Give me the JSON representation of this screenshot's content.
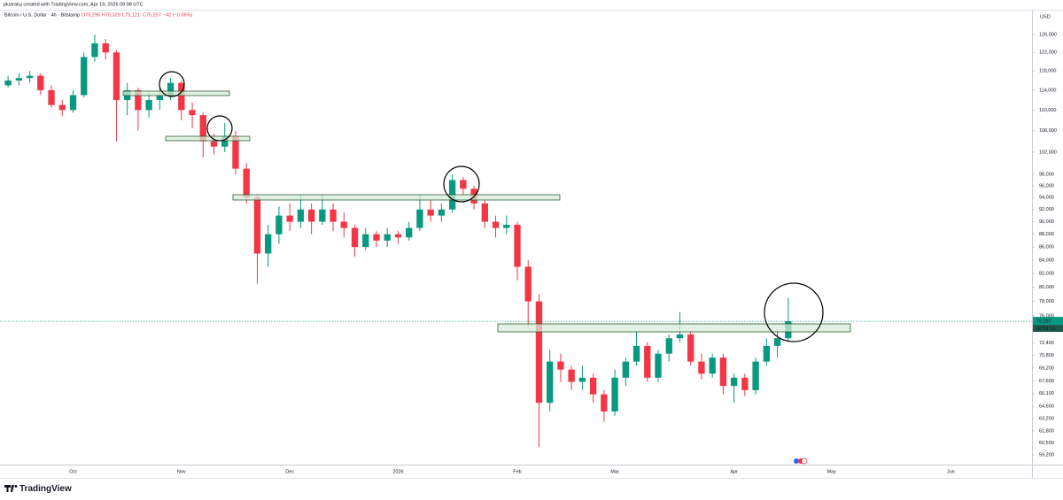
{
  "header": {
    "credit": "pkstratuj created with TradingView.com, Apr 19, 2026 09:08 UTC",
    "logo": "TradingView"
  },
  "chart_data": {
    "type": "candlestick",
    "legend": {
      "symbol": "Bitcoin / U.S. Dollar · 4h · Bitstamp",
      "ohlc": [
        "O75,296",
        "H75,329",
        "L75,121",
        "C75,257"
      ],
      "change": "−42 (−0.06%)"
    },
    "currency": "USD",
    "price_label": {
      "value": 75257,
      "label": "75,257"
    },
    "countdown": "02:51:18",
    "log_scale": true,
    "grid": false,
    "up_color": "#089981",
    "down_color": "#f23645",
    "ylim": [
      58170,
      131520
    ],
    "yticks": [
      {
        "value": 126000,
        "label": "126,000"
      },
      {
        "value": 122000,
        "label": "122,000"
      },
      {
        "value": 118000,
        "label": "118,000"
      },
      {
        "value": 114000,
        "label": "114,000"
      },
      {
        "value": 110000,
        "label": "110,000"
      },
      {
        "value": 106000,
        "label": "106,000"
      },
      {
        "value": 102000,
        "label": "102,000"
      },
      {
        "value": 98000,
        "label": "98,000"
      },
      {
        "value": 96000,
        "label": "96,000"
      },
      {
        "value": 94000,
        "label": "94,000"
      },
      {
        "value": 92000,
        "label": "92,000"
      },
      {
        "value": 90000,
        "label": "90,000"
      },
      {
        "value": 88000,
        "label": "88,000"
      },
      {
        "value": 86000,
        "label": "86,000"
      },
      {
        "value": 84000,
        "label": "84,000"
      },
      {
        "value": 82000,
        "label": "82,000"
      },
      {
        "value": 80000,
        "label": "80,000"
      },
      {
        "value": 78000,
        "label": "78,000"
      },
      {
        "value": 76000,
        "label": "76,000"
      },
      {
        "value": 72400,
        "label": "72,400"
      },
      {
        "value": 70800,
        "label": "70,800"
      },
      {
        "value": 69200,
        "label": "69,200"
      },
      {
        "value": 67600,
        "label": "67,600"
      },
      {
        "value": 66100,
        "label": "66,100"
      },
      {
        "value": 64600,
        "label": "64,600"
      },
      {
        "value": 63200,
        "label": "63,200"
      },
      {
        "value": 61800,
        "label": "61,800"
      },
      {
        "value": 60500,
        "label": "60,500"
      },
      {
        "value": 59200,
        "label": "59,200"
      }
    ],
    "categories": [
      null,
      null,
      null,
      null,
      null,
      null,
      "Oct",
      null,
      null,
      null,
      null,
      null,
      null,
      null,
      null,
      null,
      "Nov",
      null,
      null,
      null,
      null,
      null,
      null,
      null,
      null,
      null,
      "Dec",
      null,
      null,
      null,
      null,
      null,
      null,
      null,
      null,
      null,
      "2026",
      null,
      null,
      null,
      null,
      null,
      null,
      null,
      null,
      null,
      null,
      "Feb",
      null,
      null,
      null,
      null,
      null,
      null,
      null,
      null,
      "Mar",
      null,
      null,
      null,
      null,
      null,
      null,
      null,
      null,
      null,
      null,
      "Apr",
      null,
      null,
      null,
      null,
      null,
      null,
      null,
      null,
      "May",
      null,
      null,
      null,
      null,
      null,
      null,
      null,
      null,
      null,
      null,
      "Jun",
      null,
      null,
      null,
      null,
      null,
      null,
      null
    ],
    "open": [
      115000,
      116000,
      116500,
      117000,
      114000,
      111000,
      110000,
      113000,
      121000,
      124000,
      122000,
      112000,
      114000,
      110000,
      112000,
      113000,
      115500,
      110000,
      109000,
      104000,
      103000,
      105000,
      99000,
      94000,
      85000,
      88000,
      91000,
      90000,
      92000,
      90000,
      92000,
      90000,
      89000,
      86000,
      88000,
      87000,
      88000,
      87500,
      89000,
      92000,
      91000,
      92000,
      97000,
      95500,
      93000,
      90000,
      89000,
      89500,
      83000,
      78000,
      65000,
      70000,
      69000,
      67500,
      68000,
      66000,
      64000,
      68000,
      70000,
      72000,
      68000,
      71000,
      73000,
      73500,
      70000,
      68500,
      70500,
      67000,
      68000,
      66500,
      70000,
      72000,
      73000,
      null,
      null,
      null,
      null,
      null,
      null,
      null,
      null,
      null,
      null,
      null,
      null,
      null,
      null,
      null,
      null,
      null,
      null,
      null,
      null,
      null,
      null
    ],
    "high": [
      117000,
      117500,
      118000,
      117500,
      115000,
      112000,
      114000,
      122000,
      126000,
      125000,
      122500,
      115500,
      114500,
      113500,
      114500,
      116500,
      116000,
      111500,
      109500,
      105500,
      107500,
      106000,
      100000,
      94500,
      89500,
      92500,
      93000,
      94500,
      93000,
      94500,
      93000,
      91500,
      89500,
      89000,
      88500,
      89000,
      88500,
      90000,
      94500,
      93500,
      93000,
      98000,
      97500,
      96000,
      93500,
      91000,
      91000,
      90000,
      84000,
      79000,
      71500,
      71000,
      69500,
      69500,
      68500,
      66500,
      69000,
      70500,
      74000,
      72500,
      71500,
      73500,
      76500,
      74000,
      71000,
      71000,
      71000,
      68500,
      68500,
      70500,
      73000,
      74000,
      78500,
      null,
      null,
      null,
      null,
      null,
      null,
      null,
      null,
      null,
      null,
      null,
      null,
      null,
      null,
      null,
      null,
      null,
      null,
      null,
      null,
      null,
      null
    ],
    "low": [
      114500,
      115000,
      115500,
      113000,
      110500,
      108800,
      109500,
      112500,
      120000,
      120500,
      104000,
      109000,
      106000,
      108500,
      110000,
      112000,
      108000,
      106500,
      101000,
      101500,
      102000,
      98000,
      93000,
      80500,
      83000,
      86500,
      88500,
      89000,
      88000,
      89500,
      88500,
      87500,
      84500,
      85500,
      86000,
      86000,
      86500,
      87000,
      88500,
      90000,
      90000,
      91500,
      94500,
      92000,
      89000,
      87500,
      88000,
      81000,
      74500,
      60000,
      64000,
      67500,
      66500,
      66500,
      65000,
      62800,
      63500,
      67000,
      69500,
      67500,
      67500,
      70000,
      72500,
      69500,
      67800,
      68000,
      66000,
      65000,
      65800,
      66000,
      69500,
      70500,
      72500,
      null,
      null,
      null,
      null,
      null,
      null,
      null,
      null,
      null,
      null,
      null,
      null,
      null,
      null,
      null,
      null,
      null,
      null,
      null,
      null,
      null,
      null
    ],
    "close": [
      116000,
      116500,
      117000,
      114000,
      111000,
      110000,
      113000,
      121000,
      124000,
      122000,
      112000,
      114000,
      110000,
      112000,
      113000,
      115500,
      110000,
      109000,
      104000,
      103000,
      105000,
      99000,
      94000,
      85000,
      88000,
      91000,
      90000,
      92000,
      90000,
      92000,
      90000,
      89000,
      86000,
      88000,
      87000,
      88000,
      87500,
      89000,
      92000,
      91000,
      92000,
      97000,
      95500,
      93000,
      90000,
      89000,
      89500,
      83000,
      78000,
      65000,
      70000,
      69000,
      67500,
      68000,
      66000,
      64000,
      68000,
      70000,
      72000,
      68000,
      71000,
      73000,
      73500,
      70000,
      68500,
      70500,
      67000,
      68000,
      66500,
      70000,
      72000,
      73000,
      75257,
      null,
      null,
      null,
      null,
      null,
      null,
      null,
      null,
      null,
      null,
      null,
      null,
      null,
      null,
      null,
      null,
      null,
      null,
      null,
      null,
      null,
      null
    ]
  }
}
